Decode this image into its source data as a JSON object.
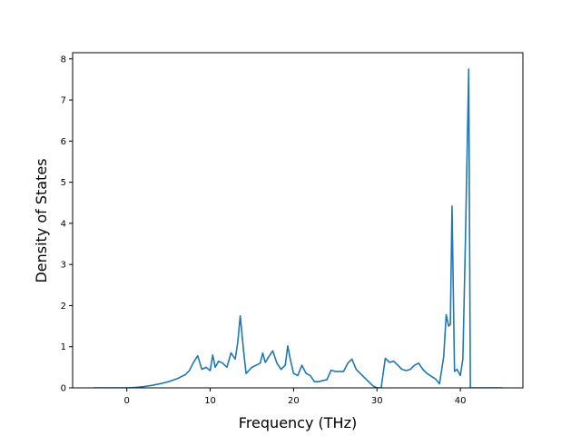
{
  "chart_data": {
    "type": "line",
    "title": "",
    "xlabel": "Frequency (THz)",
    "ylabel": "Density of States",
    "xlim": [
      -6.5,
      47.5
    ],
    "ylim": [
      0,
      8.15
    ],
    "xticks": [
      0,
      10,
      20,
      30,
      40
    ],
    "xtick_labels": [
      "0",
      "10",
      "20",
      "30",
      "40"
    ],
    "yticks": [
      0,
      1,
      2,
      3,
      4,
      5,
      6,
      7,
      8
    ],
    "ytick_labels": [
      "0",
      "1",
      "2",
      "3",
      "4",
      "5",
      "6",
      "7",
      "8"
    ],
    "grid": false,
    "legend": "none",
    "series": [
      {
        "color": "#1f77b4",
        "x": [
          -4,
          -2,
          0,
          1,
          2,
          3,
          4,
          5,
          6,
          7,
          7.5,
          8,
          8.5,
          9,
          9.5,
          10,
          10.3,
          10.6,
          11,
          11.5,
          12,
          12.5,
          13,
          13.3,
          13.6,
          14,
          14.3,
          15,
          16,
          16.3,
          16.6,
          17,
          17.5,
          18,
          18.5,
          19,
          19.3,
          19.6,
          20,
          20.5,
          21,
          21.5,
          22,
          22.5,
          23,
          24,
          24.5,
          25,
          26,
          26.5,
          27,
          27.5,
          28,
          29,
          29.5,
          30,
          30.5,
          31,
          31.5,
          32,
          32.5,
          33,
          33.5,
          34,
          34.5,
          35,
          35.5,
          36,
          37,
          37.5,
          38,
          38.3,
          38.6,
          38.8,
          39,
          39.3,
          39.6,
          40,
          40.3,
          40.6,
          41,
          41.2,
          41.4,
          42,
          45
        ],
        "y": [
          0,
          0,
          0,
          0.01,
          0.03,
          0.06,
          0.1,
          0.15,
          0.22,
          0.32,
          0.42,
          0.62,
          0.78,
          0.45,
          0.5,
          0.42,
          0.8,
          0.5,
          0.65,
          0.6,
          0.5,
          0.85,
          0.7,
          1.1,
          1.75,
          0.9,
          0.35,
          0.5,
          0.6,
          0.85,
          0.62,
          0.75,
          0.9,
          0.6,
          0.45,
          0.55,
          1.02,
          0.7,
          0.35,
          0.3,
          0.55,
          0.35,
          0.3,
          0.15,
          0.15,
          0.2,
          0.43,
          0.4,
          0.4,
          0.6,
          0.7,
          0.45,
          0.35,
          0.15,
          0.05,
          0,
          0,
          0.72,
          0.62,
          0.65,
          0.55,
          0.45,
          0.42,
          0.45,
          0.55,
          0.6,
          0.45,
          0.35,
          0.22,
          0.1,
          0.75,
          1.78,
          1.5,
          1.55,
          4.42,
          0.4,
          0.45,
          0.3,
          0.7,
          3.5,
          7.75,
          0,
          0,
          0,
          0
        ]
      }
    ]
  }
}
